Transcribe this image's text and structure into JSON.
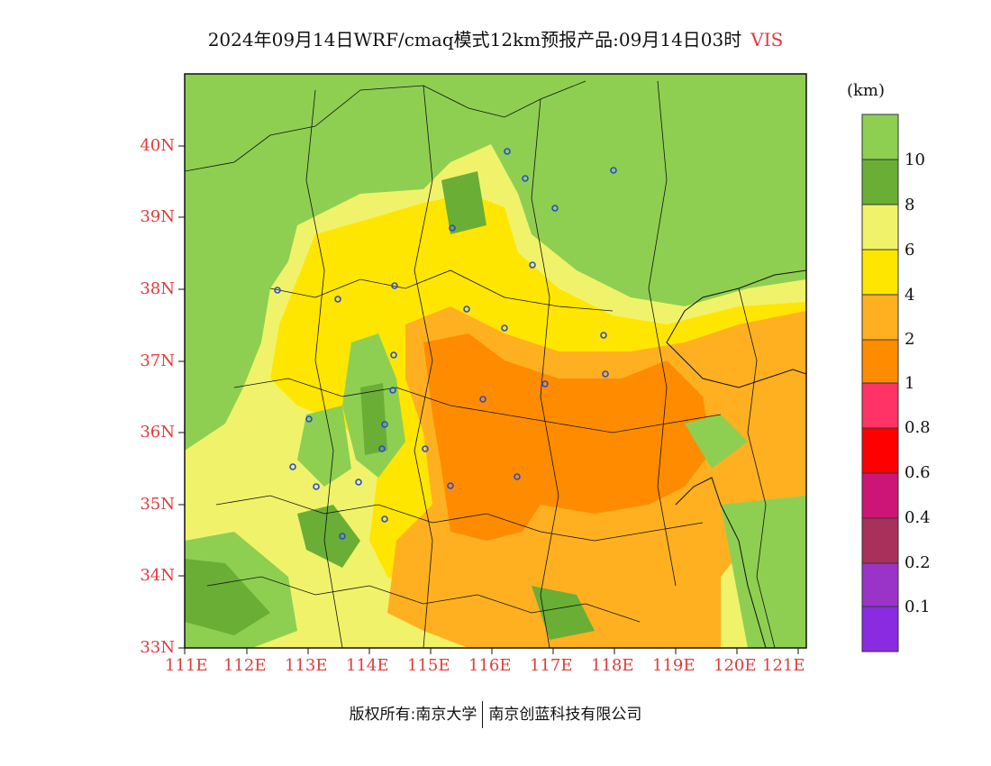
{
  "title": {
    "main": "2024年09月14日WRF/cmaq模式12km预报产品:09月14日03时",
    "variable": "VIS"
  },
  "colorbar": {
    "unit": "(km)",
    "labels": [
      "10",
      "8",
      "6",
      "4",
      "2",
      "1",
      "0.8",
      "0.6",
      "0.4",
      "0.2",
      "0.1"
    ],
    "colors": [
      "#8ecf52",
      "#6aae36",
      "#f0f36a",
      "#ffe600",
      "#ffb020",
      "#ff8c00",
      "#ff3366",
      "#ff0000",
      "#cc1577",
      "#a8305a",
      "#9a34c8",
      "#8a2be2"
    ]
  },
  "axes": {
    "lat_labels": [
      "40N",
      "39N",
      "38N",
      "37N",
      "36N",
      "35N",
      "34N",
      "33N"
    ],
    "lon_labels": [
      "111E",
      "112E",
      "113E",
      "114E",
      "115E",
      "116E",
      "117E",
      "118E",
      "119E",
      "120E",
      "121E"
    ]
  },
  "footer": {
    "left": "版权所有:南京大学",
    "right": "南京创蓝科技有限公司"
  }
}
